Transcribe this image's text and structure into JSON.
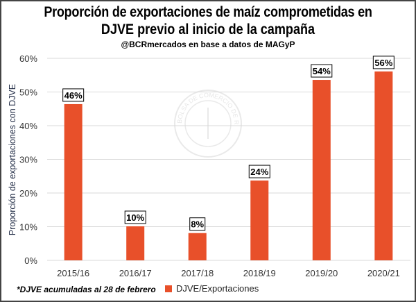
{
  "chart_data": {
    "type": "bar",
    "title": "Proporción de exportaciones de maíz comprometidas en",
    "title_line2": "DJVE previo al inicio de la campaña",
    "subtitle": "@BCRmercados en base a datos de MAGyP",
    "ylabel": "Proporción de exportaciones con DJVE",
    "xlabel": "",
    "categories": [
      "2015/16",
      "2016/17",
      "2017/18",
      "2018/19",
      "2019/20",
      "2020/21"
    ],
    "series": [
      {
        "name": "DJVE/Exportaciones",
        "values": [
          46.4,
          10.1,
          8.1,
          23.7,
          53.6,
          56.1
        ],
        "color": "#e8502a"
      }
    ],
    "data_labels": [
      "46%",
      "10%",
      "8%",
      "24%",
      "54%",
      "56%"
    ],
    "ylim": [
      0,
      60
    ],
    "yticks": [
      0,
      10,
      20,
      30,
      40,
      50,
      60
    ],
    "ytick_labels": [
      "0%",
      "10%",
      "20%",
      "30%",
      "40%",
      "50%",
      "60%"
    ],
    "grid": true,
    "legend_position": "bottom",
    "footnote": "*DJVE acumuladas al 28 de febrero",
    "watermark": "BOLSA DE COMERCIO DE ROSARIO"
  }
}
